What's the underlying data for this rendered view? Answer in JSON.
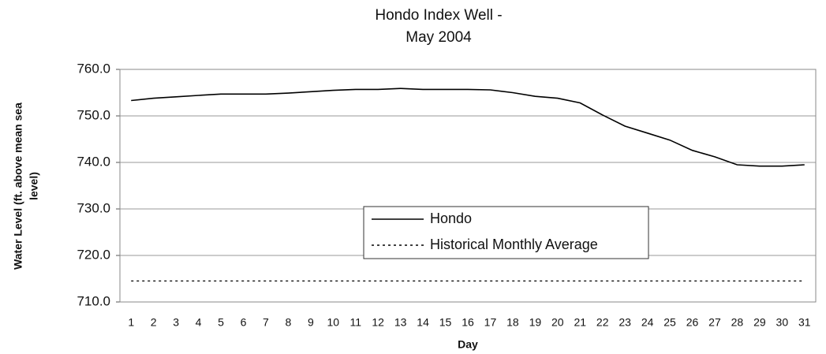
{
  "chart_data": {
    "type": "line",
    "title": [
      "Hondo Index Well -",
      "May 2004"
    ],
    "y_label": [
      "Water Level (ft. above mean sea",
      "level)"
    ],
    "x_label": "Day",
    "categories": [
      "1",
      "2",
      "3",
      "4",
      "5",
      "6",
      "7",
      "8",
      "9",
      "10",
      "11",
      "12",
      "13",
      "14",
      "15",
      "16",
      "17",
      "18",
      "19",
      "20",
      "21",
      "22",
      "23",
      "24",
      "25",
      "26",
      "27",
      "28",
      "29",
      "30",
      "31"
    ],
    "series": [
      {
        "name": "Hondo",
        "color": "#000000",
        "line_style": "solid",
        "values": [
          753.3,
          753.8,
          754.1,
          754.4,
          754.7,
          754.7,
          754.7,
          754.9,
          755.2,
          755.5,
          755.7,
          755.7,
          755.9,
          755.7,
          755.7,
          755.7,
          755.6,
          755.0,
          754.2,
          753.8,
          752.8,
          750.2,
          747.8,
          746.3,
          744.8,
          742.6,
          741.2,
          739.5,
          739.2,
          739.2,
          739.5
        ]
      },
      {
        "name": "Historical Monthly Average",
        "color": "#000000",
        "line_style": "dotted",
        "values": [
          714.5,
          714.5,
          714.5,
          714.5,
          714.5,
          714.5,
          714.5,
          714.5,
          714.5,
          714.5,
          714.5,
          714.5,
          714.5,
          714.5,
          714.5,
          714.5,
          714.5,
          714.5,
          714.5,
          714.5,
          714.5,
          714.5,
          714.5,
          714.5,
          714.5,
          714.5,
          714.5,
          714.5,
          714.5,
          714.5,
          714.5
        ]
      }
    ],
    "ylim": [
      710,
      760
    ],
    "yticks": [
      {
        "value": 710,
        "label": "710.0"
      },
      {
        "value": 720,
        "label": "720.0"
      },
      {
        "value": 730,
        "label": "730.0"
      },
      {
        "value": 740,
        "label": "740.0"
      },
      {
        "value": 750,
        "label": "750.0"
      },
      {
        "value": 760,
        "label": "760.0"
      }
    ],
    "grid": true
  }
}
